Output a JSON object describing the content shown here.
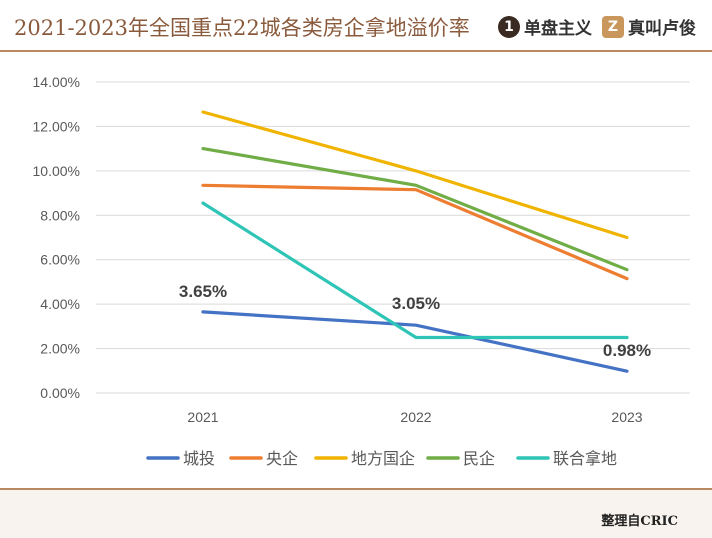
{
  "header": {
    "title": "2021-2023年全国重点22城各类房企拿地溢价率",
    "brand1_icon": "1",
    "brand1_name": "单盘主义",
    "brand2_icon": "Z",
    "brand2_name": "真叫卢俊"
  },
  "footer": {
    "source": "整理自CRIC"
  },
  "colors": {
    "accent": "#b98a62",
    "title": "#8a5a3c"
  },
  "chart_data": {
    "type": "line",
    "title": "2021-2023年全国重点22城各类房企拿地溢价率",
    "categories": [
      "2021",
      "2022",
      "2023"
    ],
    "ylim": [
      0,
      14
    ],
    "y_ticks": [
      "0.00%",
      "2.00%",
      "4.00%",
      "6.00%",
      "8.00%",
      "10.00%",
      "12.00%",
      "14.00%"
    ],
    "grid": true,
    "legend_position": "bottom",
    "series": [
      {
        "name": "城投",
        "color": "#4472c4",
        "values": [
          3.65,
          3.05,
          0.98
        ],
        "labels": [
          "3.65%",
          "3.05%",
          "0.98%"
        ]
      },
      {
        "name": "央企",
        "color": "#ed7d31",
        "values": [
          9.35,
          9.15,
          5.15
        ]
      },
      {
        "name": "地方国企",
        "color": "#f0b400",
        "values": [
          12.65,
          10.0,
          7.0
        ]
      },
      {
        "name": "民企",
        "color": "#70ad47",
        "values": [
          11.0,
          9.35,
          5.55
        ]
      },
      {
        "name": "联合拿地",
        "color": "#2ec4b6",
        "values": [
          8.55,
          2.5,
          2.5
        ]
      }
    ]
  }
}
